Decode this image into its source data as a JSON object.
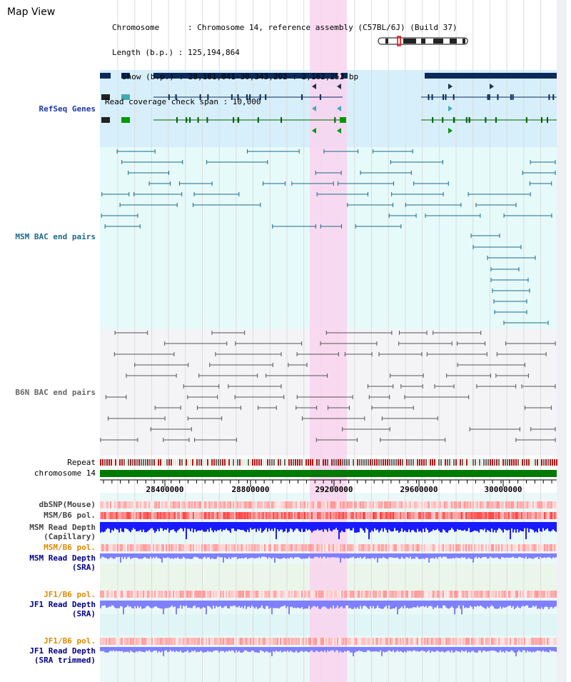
{
  "title": "Map View",
  "info": {
    "lines": [
      "Chromosome      : Chromosome 14, reference assembly (C57BL/6J) (Build 37)",
      "Length (b.p.) : 125,194,864",
      "Show (b.p.) : 28,181,041-30,343,292 : 2,162,252 bp",
      "Read coverage check span : 10,000"
    ]
  },
  "tracks": {
    "refseq": "RefSeq Genes",
    "msm_bac": "MSM BAC end pairs",
    "b6n_bac": "B6N BAC end pairs",
    "repeat": "Repeat",
    "chromosome": "chromosome 14",
    "dbsnp": "dbSNP(Mouse)",
    "msm_b6_pol_1": "MSM/B6 pol.",
    "msm_depth_cap_1": "MSM Read Depth",
    "msm_depth_cap_2": "(Capillary)",
    "msm_b6_pol_2": "MSM/B6 pol.",
    "msm_depth_sra_1": "MSM Read Depth",
    "msm_depth_sra_2": "(SRA)",
    "jf1_b6_pol_1": "JF1/B6 pol.",
    "jf1_depth_sra_1": "JF1 Read Depth",
    "jf1_depth_sra_2": "(SRA)",
    "jf1_b6_pol_2": "JF1/B6 pol.",
    "jf1_depth_trim_1": "JF1 Read Depth",
    "jf1_depth_trim_2": "(SRA trimmed)"
  },
  "axis": {
    "ticks": [
      "28400000",
      "28800000",
      "29200000",
      "29600000",
      "30000000"
    ]
  },
  "colors": {
    "highlight": "#f9d4ef",
    "refseq_bg": "#d6effa",
    "msm_bg": "#e6fafa",
    "b6n_bg": "#f4f4f7",
    "gene": "#0a2a5a",
    "msm_pair": "#1a6a88",
    "b6n_pair": "#555555",
    "chromosome_bar": "#007a00",
    "depth_blue": "#1a1aff",
    "depth_light": "#7f7fff",
    "label_blue": "#00008b",
    "label_teal": "#005f6f",
    "label_orange": "#e08a00"
  }
}
